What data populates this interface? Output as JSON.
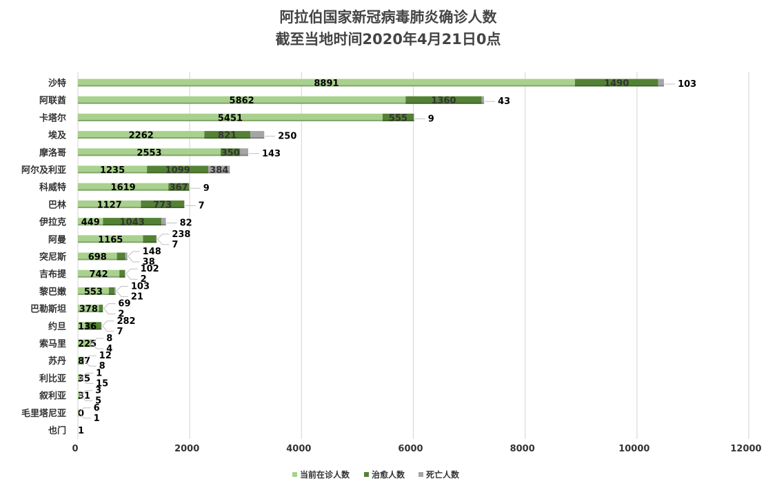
{
  "chart_data": {
    "type": "bar",
    "orientation": "horizontal",
    "stacked": true,
    "title": "阿拉伯国家新冠病毒肺炎确诊人数",
    "subtitle": "截至当地时间2020年4月21日0点",
    "categories": [
      "沙特",
      "阿联酋",
      "卡塔尔",
      "埃及",
      "摩洛哥",
      "阿尔及利亚",
      "科威特",
      "巴林",
      "伊拉克",
      "阿曼",
      "突尼斯",
      "吉布提",
      "黎巴嫩",
      "巴勒斯坦",
      "约旦",
      "索马里",
      "苏丹",
      "利比亚",
      "叙利亚",
      "毛里塔尼亚",
      "也门"
    ],
    "series": [
      {
        "name": "当前在诊人数",
        "color": "#a9d18e",
        "values": [
          8891,
          5862,
          5451,
          2262,
          2553,
          1235,
          1619,
          1127,
          449,
          1165,
          698,
          742,
          553,
          378,
          136,
          225,
          87,
          35,
          31,
          0,
          1
        ]
      },
      {
        "name": "治愈人数",
        "color": "#548235",
        "values": [
          1490,
          1360,
          555,
          821,
          350,
          1099,
          367,
          773,
          1043,
          238,
          148,
          102,
          103,
          69,
          282,
          8,
          12,
          1,
          3,
          6,
          null
        ]
      },
      {
        "name": "死亡人数",
        "color": "#a5a5a5",
        "values": [
          103,
          43,
          9,
          250,
          143,
          384,
          9,
          7,
          82,
          7,
          38,
          2,
          21,
          2,
          7,
          4,
          8,
          15,
          5,
          1,
          null
        ]
      }
    ],
    "xlim": [
      0,
      12000
    ],
    "xticks": [
      "0",
      "2000",
      "4000",
      "6000",
      "8000",
      "10000",
      "12000"
    ],
    "grid": true,
    "legend_position": "bottom"
  }
}
